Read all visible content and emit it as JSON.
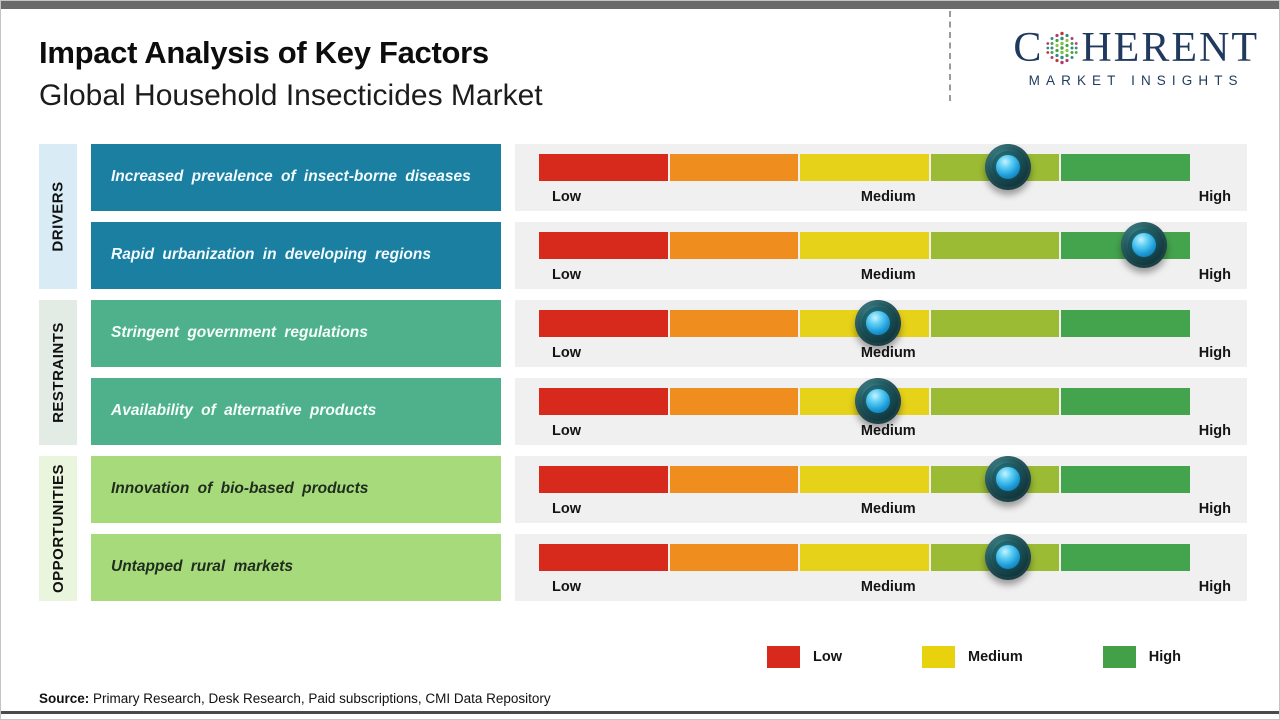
{
  "header": {
    "title": "Impact Analysis of Key Factors",
    "subtitle": "Global Household Insecticides Market"
  },
  "logo": {
    "part1": "C",
    "part2": "HERENT",
    "tagline": "MARKET INSIGHTS",
    "brand_color": "#1f3a5c"
  },
  "scale": {
    "low": "Low",
    "medium": "Medium",
    "high": "High"
  },
  "legend": {
    "items": [
      {
        "label": "Low",
        "color": "#d7291c"
      },
      {
        "label": "Medium",
        "color": "#e8d20e"
      },
      {
        "label": "High",
        "color": "#43a047"
      }
    ]
  },
  "source": {
    "prefix": "Source:",
    "text": " Primary Research, Desk Research, Paid subscriptions, CMI Data Repository"
  },
  "chart_data": {
    "type": "bar",
    "title": "Impact Analysis of Key Factors",
    "subtitle": "Global Household Insecticides Market",
    "x_scale_labels": [
      "Low",
      "Medium",
      "High"
    ],
    "x_range_pct": [
      0,
      100
    ],
    "segment_colors": [
      "#d7291c",
      "#ef8d1e",
      "#e6d219",
      "#9bbb34",
      "#44a34d"
    ],
    "legend_position": "bottom-right",
    "groups": [
      {
        "label": "DRIVERS",
        "factors": [
          {
            "name": "Increased prevalence of insect-borne diseases",
            "impact_pct": 72,
            "impact": "medium-high"
          },
          {
            "name": "Rapid urbanization in developing regions",
            "impact_pct": 93,
            "impact": "high"
          }
        ]
      },
      {
        "label": "RESTRAINTS",
        "factors": [
          {
            "name": "Stringent government regulations",
            "impact_pct": 52,
            "impact": "medium"
          },
          {
            "name": "Availability of alternative products",
            "impact_pct": 52,
            "impact": "medium"
          }
        ]
      },
      {
        "label": "OPPORTUNITIES",
        "factors": [
          {
            "name": "Innovation of bio-based products",
            "impact_pct": 72,
            "impact": "medium-high"
          },
          {
            "name": "Untapped rural markets",
            "impact_pct": 72,
            "impact": "medium-high"
          }
        ]
      }
    ]
  }
}
